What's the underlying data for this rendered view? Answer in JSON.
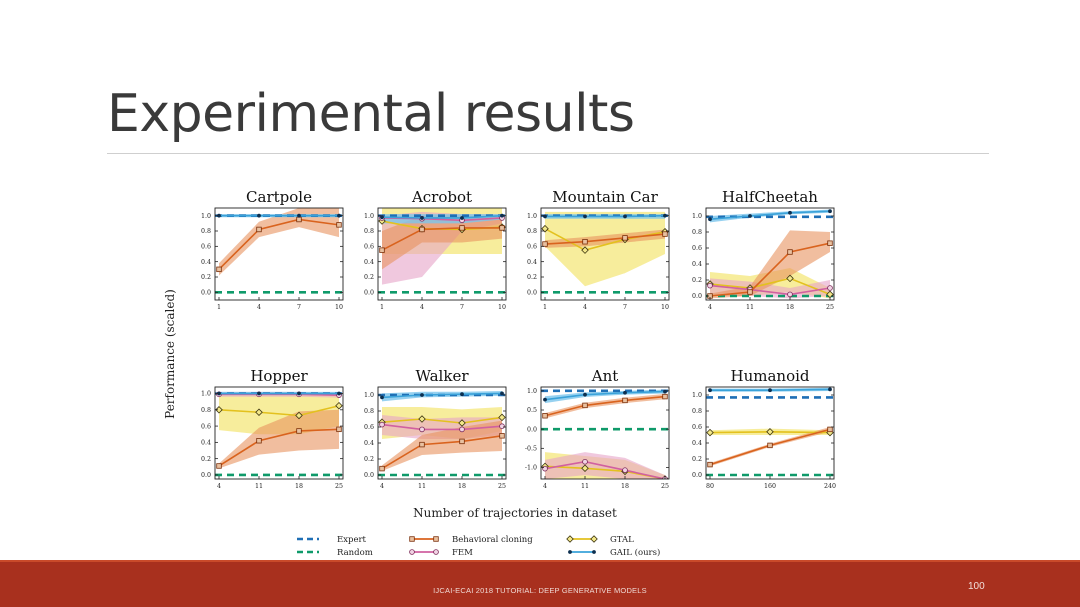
{
  "slide": {
    "title": "Experimental results",
    "footer": "IJCAI-ECAI 2018 TUTORIAL: DEEP GENERATIVE MODELS",
    "page_number": "100"
  },
  "colors": {
    "expert": "#1f6fb5",
    "random": "#0f9a6a",
    "bc": "#d9631e",
    "bc_band": "#e8925f",
    "fem": "#d160a0",
    "fem_band": "#e6a3c8",
    "gtal": "#e3c11e",
    "gtal_band": "#f2e15a",
    "gail": "#3aa2d9",
    "gail_band": "#7cc5ec",
    "footer": "#a8301e"
  },
  "chart_data": {
    "type": "line",
    "ylabel": "Performance (scaled)",
    "xlabel": "Number of trajectories in dataset",
    "legend": [
      {
        "key": "expert",
        "label": "Expert"
      },
      {
        "key": "random",
        "label": "Random"
      },
      {
        "key": "bc",
        "label": "Behavioral cloning"
      },
      {
        "key": "fem",
        "label": "FEM"
      },
      {
        "key": "gtal",
        "label": "GTAL"
      },
      {
        "key": "gail",
        "label": "GAIL (ours)"
      }
    ],
    "legend_placement": "bottom",
    "panels": [
      {
        "title": "Cartpole",
        "x": [
          1,
          4,
          7,
          10
        ],
        "xticks": [
          "1",
          "4",
          "7",
          "10"
        ],
        "yticks": [
          "0.0",
          "0.2",
          "0.4",
          "0.6",
          "0.8",
          "1.0"
        ],
        "ylim": [
          -0.1,
          1.1
        ],
        "expert": 1.0,
        "random": 0.0,
        "series": {
          "bc": {
            "values": [
              0.3,
              0.82,
              0.95,
              0.88
            ],
            "band": [
              [
                0.22,
                0.38
              ],
              [
                0.72,
                0.92
              ],
              [
                0.85,
                1.1
              ],
              [
                0.72,
                1.1
              ]
            ],
            "marker": "square"
          },
          "gail": {
            "values": [
              1.0,
              1.0,
              1.0,
              1.0
            ],
            "band": [
              [
                0.98,
                1.02
              ],
              [
                0.98,
                1.02
              ],
              [
                0.98,
                1.02
              ],
              [
                0.98,
                1.02
              ]
            ],
            "marker": "dot"
          }
        }
      },
      {
        "title": "Acrobot",
        "x": [
          1,
          4,
          7,
          10
        ],
        "xticks": [
          "1",
          "4",
          "7",
          "10"
        ],
        "yticks": [
          "0.0",
          "0.2",
          "0.4",
          "0.6",
          "0.8",
          "1.0"
        ],
        "ylim": [
          -0.1,
          1.1
        ],
        "expert": 1.0,
        "random": 0.0,
        "series": {
          "bc": {
            "values": [
              0.55,
              0.82,
              0.84,
              0.84
            ],
            "band": [
              [
                0.3,
                0.8
              ],
              [
                0.65,
                1.0
              ],
              [
                0.65,
                1.0
              ],
              [
                0.7,
                0.98
              ]
            ],
            "marker": "square"
          },
          "fem": {
            "values": [
              0.97,
              0.96,
              0.94,
              0.97
            ],
            "band": [
              [
                0.1,
                1.0
              ],
              [
                0.2,
                1.05
              ],
              [
                0.8,
                1.02
              ],
              [
                0.9,
                1.02
              ]
            ],
            "marker": "circle"
          },
          "gtal": {
            "values": [
              0.93,
              0.83,
              0.82,
              0.85
            ],
            "band": [
              [
                0.5,
                1.1
              ],
              [
                0.5,
                1.1
              ],
              [
                0.5,
                1.1
              ],
              [
                0.5,
                1.1
              ]
            ],
            "marker": "diamond"
          },
          "gail": {
            "values": [
              0.98,
              0.97,
              0.97,
              1.0
            ],
            "band": [
              [
                0.9,
                1.02
              ],
              [
                0.9,
                1.02
              ],
              [
                0.9,
                1.02
              ],
              [
                0.95,
                1.02
              ]
            ],
            "marker": "dot"
          }
        }
      },
      {
        "title": "Mountain Car",
        "x": [
          1,
          4,
          7,
          10
        ],
        "xticks": [
          "1",
          "4",
          "7",
          "10"
        ],
        "yticks": [
          "0.0",
          "0.2",
          "0.4",
          "0.6",
          "0.8",
          "1.0"
        ],
        "ylim": [
          -0.1,
          1.1
        ],
        "expert": 1.0,
        "random": 0.0,
        "series": {
          "bc": {
            "values": [
              0.63,
              0.66,
              0.71,
              0.76
            ],
            "band": [
              [
                0.58,
                0.68
              ],
              [
                0.6,
                0.72
              ],
              [
                0.65,
                0.77
              ],
              [
                0.7,
                0.82
              ]
            ],
            "marker": "square"
          },
          "gtal": {
            "values": [
              0.83,
              0.55,
              0.69,
              0.79
            ],
            "band": [
              [
                0.6,
                1.05
              ],
              [
                0.08,
                1.05
              ],
              [
                0.25,
                1.05
              ],
              [
                0.5,
                1.05
              ]
            ],
            "marker": "diamond"
          },
          "gail": {
            "values": [
              0.99,
              0.99,
              0.99,
              1.0
            ],
            "band": [
              [
                0.96,
                1.02
              ],
              [
                0.96,
                1.02
              ],
              [
                0.96,
                1.02
              ],
              [
                0.96,
                1.02
              ]
            ],
            "marker": "dot"
          }
        }
      },
      {
        "title": "HalfCheetah",
        "x": [
          4,
          11,
          18,
          25
        ],
        "xticks": [
          "4",
          "11",
          "18",
          "25"
        ],
        "yticks": [
          "0.0",
          "0.2",
          "0.4",
          "0.6",
          "0.8",
          "1.0"
        ],
        "ylim": [
          -0.05,
          1.1
        ],
        "expert": 0.99,
        "random": 0.0,
        "series": {
          "bc": {
            "values": [
              0.0,
              0.05,
              0.55,
              0.66
            ],
            "band": [
              [
                -0.03,
                0.03
              ],
              [
                0.0,
                0.12
              ],
              [
                0.25,
                0.82
              ],
              [
                0.55,
                0.8
              ]
            ],
            "marker": "square"
          },
          "fem": {
            "values": [
              0.13,
              0.08,
              0.02,
              0.1
            ],
            "band": [
              [
                0.0,
                0.22
              ],
              [
                0.0,
                0.18
              ],
              [
                -0.03,
                0.1
              ],
              [
                0.0,
                0.2
              ]
            ],
            "marker": "circle"
          },
          "gtal": {
            "values": [
              0.15,
              0.1,
              0.22,
              0.02
            ],
            "band": [
              [
                0.0,
                0.3
              ],
              [
                0.0,
                0.25
              ],
              [
                0.05,
                0.35
              ],
              [
                -0.03,
                0.1
              ]
            ],
            "marker": "diamond"
          },
          "gail": {
            "values": [
              0.96,
              1.0,
              1.04,
              1.06
            ],
            "band": [
              [
                0.92,
                1.0
              ],
              [
                0.98,
                1.03
              ],
              [
                1.02,
                1.06
              ],
              [
                1.04,
                1.08
              ]
            ],
            "marker": "dot"
          }
        }
      },
      {
        "title": "Hopper",
        "x": [
          4,
          11,
          18,
          25
        ],
        "xticks": [
          "4",
          "11",
          "18",
          "25"
        ],
        "yticks": [
          "0.0",
          "0.2",
          "0.4",
          "0.6",
          "0.8",
          "1.0"
        ],
        "ylim": [
          -0.05,
          1.08
        ],
        "expert": 1.0,
        "random": 0.0,
        "series": {
          "bc": {
            "values": [
              0.11,
              0.42,
              0.54,
              0.56
            ],
            "band": [
              [
                0.08,
                0.14
              ],
              [
                0.25,
                0.58
              ],
              [
                0.3,
                0.78
              ],
              [
                0.32,
                0.8
              ]
            ],
            "marker": "square"
          },
          "fem": {
            "values": [
              0.99,
              0.99,
              0.99,
              0.98
            ],
            "band": [
              [
                0.96,
                1.02
              ],
              [
                0.96,
                1.02
              ],
              [
                0.96,
                1.02
              ],
              [
                0.95,
                1.0
              ]
            ],
            "marker": "circle"
          },
          "gtal": {
            "values": [
              0.8,
              0.77,
              0.73,
              0.85
            ],
            "band": [
              [
                0.55,
                1.0
              ],
              [
                0.5,
                1.0
              ],
              [
                0.5,
                1.0
              ],
              [
                0.6,
                1.0
              ]
            ],
            "marker": "diamond"
          },
          "gail": {
            "values": [
              1.0,
              1.0,
              1.0,
              1.0
            ],
            "band": [
              [
                0.98,
                1.02
              ],
              [
                0.98,
                1.02
              ],
              [
                0.98,
                1.02
              ],
              [
                0.98,
                1.02
              ]
            ],
            "marker": "dot"
          }
        }
      },
      {
        "title": "Walker",
        "x": [
          4,
          11,
          18,
          25
        ],
        "xticks": [
          "4",
          "11",
          "18",
          "25"
        ],
        "yticks": [
          "0.0",
          "0.2",
          "0.4",
          "0.6",
          "0.8",
          "1.0"
        ],
        "ylim": [
          -0.05,
          1.1
        ],
        "expert": 1.0,
        "random": 0.0,
        "series": {
          "bc": {
            "values": [
              0.08,
              0.38,
              0.42,
              0.49
            ],
            "band": [
              [
                0.05,
                0.12
              ],
              [
                0.25,
                0.5
              ],
              [
                0.28,
                0.6
              ],
              [
                0.3,
                0.68
              ]
            ],
            "marker": "square"
          },
          "fem": {
            "values": [
              0.63,
              0.57,
              0.57,
              0.61
            ],
            "band": [
              [
                0.5,
                0.75
              ],
              [
                0.45,
                0.7
              ],
              [
                0.45,
                0.72
              ],
              [
                0.5,
                0.72
              ]
            ],
            "marker": "circle"
          },
          "gtal": {
            "values": [
              0.66,
              0.7,
              0.65,
              0.72
            ],
            "band": [
              [
                0.45,
                0.85
              ],
              [
                0.5,
                0.85
              ],
              [
                0.45,
                0.82
              ],
              [
                0.55,
                0.85
              ]
            ],
            "marker": "diamond"
          },
          "gail": {
            "values": [
              0.97,
              1.0,
              1.01,
              1.02
            ],
            "band": [
              [
                0.92,
                1.02
              ],
              [
                0.97,
                1.04
              ],
              [
                0.98,
                1.04
              ],
              [
                0.99,
                1.05
              ]
            ],
            "marker": "dot"
          }
        }
      },
      {
        "title": "Ant",
        "x": [
          4,
          11,
          18,
          25
        ],
        "xticks": [
          "4",
          "11",
          "18",
          "25"
        ],
        "yticks": [
          "-1.0",
          "-0.5",
          "0.0",
          "0.5",
          "1.0"
        ],
        "ylim": [
          -1.3,
          1.1
        ],
        "expert": 1.0,
        "random": 0.0,
        "series": {
          "bc": {
            "values": [
              0.35,
              0.62,
              0.75,
              0.85
            ],
            "band": [
              [
                0.28,
                0.42
              ],
              [
                0.55,
                0.69
              ],
              [
                0.68,
                0.82
              ],
              [
                0.78,
                0.92
              ]
            ],
            "marker": "square"
          },
          "fem": {
            "values": [
              -1.03,
              -0.85,
              -1.07,
              -1.3
            ],
            "band": [
              [
                -1.3,
                -0.8
              ],
              [
                -1.2,
                -0.6
              ],
              [
                -1.3,
                -0.75
              ],
              [
                -1.35,
                -1.2
              ]
            ],
            "marker": "circle"
          },
          "gtal": {
            "values": [
              -0.97,
              -1.02,
              -1.1,
              -1.3
            ],
            "band": [
              [
                -1.3,
                -0.6
              ],
              [
                -1.3,
                -0.7
              ],
              [
                -1.3,
                -0.8
              ],
              [
                -1.35,
                -1.2
              ]
            ],
            "marker": "diamond"
          },
          "gail": {
            "values": [
              0.77,
              0.9,
              0.95,
              0.98
            ],
            "band": [
              [
                0.68,
                0.86
              ],
              [
                0.84,
                0.96
              ],
              [
                0.9,
                1.0
              ],
              [
                0.93,
                1.03
              ]
            ],
            "marker": "dot"
          }
        }
      },
      {
        "title": "Humanoid",
        "x": [
          80,
          160,
          240
        ],
        "xticks": [
          "80",
          "160",
          "240"
        ],
        "yticks": [
          "0.0",
          "0.2",
          "0.4",
          "0.6",
          "0.8",
          "1.0"
        ],
        "ylim": [
          -0.05,
          1.1
        ],
        "expert": 0.97,
        "random": 0.0,
        "series": {
          "bc": {
            "values": [
              0.13,
              0.37,
              0.57
            ],
            "band": [
              [
                0.11,
                0.15
              ],
              [
                0.35,
                0.39
              ],
              [
                0.54,
                0.6
              ]
            ],
            "marker": "square"
          },
          "gtal": {
            "values": [
              0.53,
              0.54,
              0.53
            ],
            "band": [
              [
                0.5,
                0.56
              ],
              [
                0.5,
                0.58
              ],
              [
                0.5,
                0.56
              ]
            ],
            "marker": "diamond"
          },
          "gail": {
            "values": [
              1.06,
              1.06,
              1.07
            ],
            "band": [
              [
                1.04,
                1.08
              ],
              [
                1.04,
                1.08
              ],
              [
                1.05,
                1.09
              ]
            ],
            "marker": "dot"
          }
        }
      }
    ]
  }
}
